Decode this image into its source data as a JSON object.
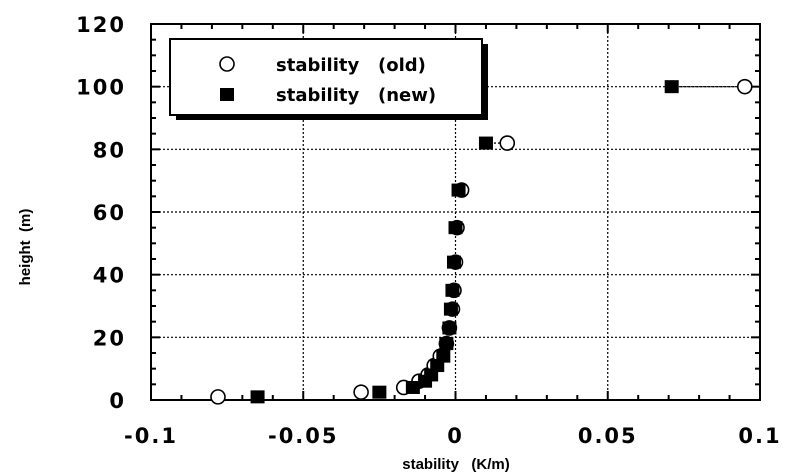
{
  "chart_data": {
    "type": "scatter",
    "title": "",
    "xlabel": "stability   (K/m)",
    "ylabel": "height  (m)",
    "xlim": [
      -0.1,
      0.1
    ],
    "ylim": [
      0,
      120
    ],
    "x_ticks": [
      "-0.1",
      "-0.05",
      "0",
      "0.05",
      "0.1"
    ],
    "y_ticks": [
      "0",
      "20",
      "40",
      "60",
      "80",
      "100",
      "120"
    ],
    "grid": true,
    "legend_position": "top-left",
    "series": [
      {
        "name": "stability   (old)",
        "marker": "open-circle",
        "color": "#000000",
        "points": [
          {
            "x": -0.078,
            "y": 1
          },
          {
            "x": -0.031,
            "y": 2.5
          },
          {
            "x": -0.017,
            "y": 4
          },
          {
            "x": -0.012,
            "y": 6
          },
          {
            "x": -0.009,
            "y": 8
          },
          {
            "x": -0.007,
            "y": 11
          },
          {
            "x": -0.005,
            "y": 14
          },
          {
            "x": -0.003,
            "y": 18
          },
          {
            "x": -0.002,
            "y": 23
          },
          {
            "x": -0.001,
            "y": 29
          },
          {
            "x": -0.0005,
            "y": 35
          },
          {
            "x": 0.0,
            "y": 44
          },
          {
            "x": 0.0005,
            "y": 55
          },
          {
            "x": 0.002,
            "y": 67
          },
          {
            "x": 0.017,
            "y": 82
          },
          {
            "x": 0.095,
            "y": 100
          }
        ]
      },
      {
        "name": "stability   (new)",
        "marker": "filled-square",
        "color": "#000000",
        "points": [
          {
            "x": -0.065,
            "y": 1
          },
          {
            "x": -0.025,
            "y": 2.5
          },
          {
            "x": -0.014,
            "y": 4
          },
          {
            "x": -0.01,
            "y": 6
          },
          {
            "x": -0.008,
            "y": 8
          },
          {
            "x": -0.006,
            "y": 11
          },
          {
            "x": -0.004,
            "y": 14
          },
          {
            "x": -0.003,
            "y": 18
          },
          {
            "x": -0.002,
            "y": 23
          },
          {
            "x": -0.0015,
            "y": 29
          },
          {
            "x": -0.001,
            "y": 35
          },
          {
            "x": -0.0005,
            "y": 44
          },
          {
            "x": 0.0,
            "y": 55
          },
          {
            "x": 0.001,
            "y": 67
          },
          {
            "x": 0.01,
            "y": 82
          },
          {
            "x": 0.071,
            "y": 100
          }
        ]
      }
    ],
    "guide_lines": [
      {
        "y": 100,
        "x_from": 0.07,
        "x_to": 0.095,
        "style": "dotted"
      },
      {
        "y": 82,
        "x_from": 0.01,
        "x_to": 0.017,
        "style": "dotted"
      }
    ]
  }
}
